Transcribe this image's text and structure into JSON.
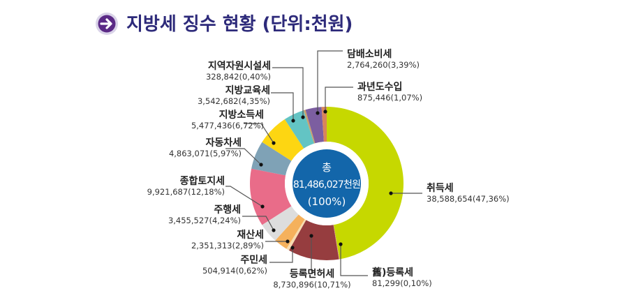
{
  "title": "지방세 징수 현황 (단위:천원)",
  "title_icon": "arrow-right-circle-icon",
  "chart_data": {
    "type": "pie",
    "subtype": "donut",
    "title": "지방세 징수 현황 (단위:천원)",
    "unit": "천원",
    "center": {
      "label": "총",
      "total": "81,486,027천원",
      "percent": "(100%)"
    },
    "slices": [
      {
        "name": "취득세",
        "value": 38588654,
        "percent": 47.36,
        "value_label": "38,588,654(47,36%)",
        "color": "#c6d800"
      },
      {
        "name": "舊)등록세",
        "value": 81299,
        "percent": 0.1,
        "value_label": "81,299(0,10%)",
        "color": "#e88aa0"
      },
      {
        "name": "등록면허세",
        "value": 8730896,
        "percent": 10.71,
        "value_label": "8,730,896(10,71%)",
        "color": "#963d3f"
      },
      {
        "name": "주민세",
        "value": 504914,
        "percent": 0.62,
        "value_label": "504,914(0,62%)",
        "color": "#f7dcb0"
      },
      {
        "name": "재산세",
        "value": 2351313,
        "percent": 2.89,
        "value_label": "2,351,313(2,89%)",
        "color": "#f5b15c"
      },
      {
        "name": "주행세",
        "value": 3455527,
        "percent": 4.24,
        "value_label": "3,455,527(4,24%)",
        "color": "#dddddd"
      },
      {
        "name": "종합토지세",
        "value": 9921687,
        "percent": 12.18,
        "value_label": "9,921,687(12,18%)",
        "color": "#e96c89"
      },
      {
        "name": "자동차세",
        "value": 4863071,
        "percent": 5.97,
        "value_label": "4,863,071(5,97%)",
        "color": "#7fa2b6"
      },
      {
        "name": "지방소득세",
        "value": 5477436,
        "percent": 6.72,
        "value_label": "5,477,436(6,72%)",
        "color": "#fdd612"
      },
      {
        "name": "지방교육세",
        "value": 3542682,
        "percent": 4.35,
        "value_label": "3,542,682(4,35%)",
        "color": "#63c4c4"
      },
      {
        "name": "지역자원시설세",
        "value": 328842,
        "percent": 0.4,
        "value_label": "328,842(0,40%)",
        "color": "#c9a06c"
      },
      {
        "name": "담배소비세",
        "value": 2764260,
        "percent": 3.39,
        "value_label": "2,764,260(3,39%)",
        "color": "#7c5ea0"
      },
      {
        "name": "과년도수입",
        "value": 875446,
        "percent": 1.07,
        "value_label": "875,446(1,07%)",
        "color": "#d9845a"
      }
    ]
  }
}
